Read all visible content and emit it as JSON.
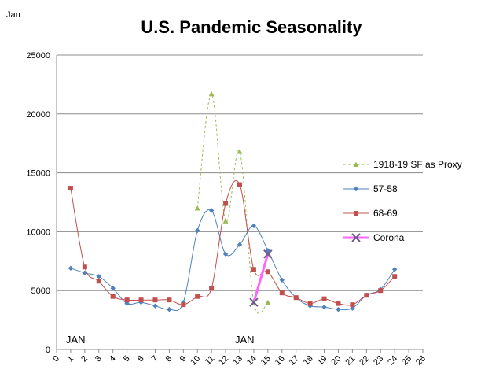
{
  "chart_data": {
    "type": "line",
    "title": "U.S. Pandemic Seasonality",
    "corner_label": "Jan",
    "annotations": [
      {
        "text": "JAN",
        "x": 1
      },
      {
        "text": "JAN",
        "x": 13
      }
    ],
    "xlim": [
      0,
      26
    ],
    "ylim": [
      0,
      25000
    ],
    "x_ticks": [
      0,
      1,
      2,
      3,
      4,
      5,
      6,
      7,
      8,
      9,
      10,
      11,
      12,
      13,
      14,
      15,
      16,
      17,
      18,
      19,
      20,
      21,
      22,
      23,
      24,
      25,
      26
    ],
    "y_ticks": [
      0,
      5000,
      10000,
      15000,
      20000,
      25000
    ],
    "grid": true,
    "legend_position": "right",
    "series": [
      {
        "name": "1918-19 SF as Proxy",
        "color": "#9bbb59",
        "style": "dashed",
        "marker": "triangle",
        "points": [
          [
            10,
            12000
          ],
          [
            11,
            21700
          ],
          [
            12,
            10900
          ],
          [
            13,
            16800
          ],
          [
            14,
            4000
          ],
          [
            15,
            4000
          ]
        ]
      },
      {
        "name": "57-58",
        "color": "#4f81bd",
        "style": "solid",
        "marker": "diamond",
        "points": [
          [
            1,
            6900
          ],
          [
            2,
            6500
          ],
          [
            3,
            6200
          ],
          [
            4,
            5200
          ],
          [
            5,
            3900
          ],
          [
            6,
            4000
          ],
          [
            7,
            3700
          ],
          [
            8,
            3400
          ],
          [
            9,
            4000
          ],
          [
            10,
            10100
          ],
          [
            11,
            11800
          ],
          [
            12,
            8100
          ],
          [
            13,
            8900
          ],
          [
            14,
            10500
          ],
          [
            15,
            8400
          ],
          [
            16,
            5900
          ],
          [
            17,
            4400
          ],
          [
            18,
            3700
          ],
          [
            19,
            3600
          ],
          [
            20,
            3400
          ],
          [
            21,
            3500
          ],
          [
            22,
            4600
          ],
          [
            23,
            5100
          ],
          [
            24,
            6800
          ]
        ]
      },
      {
        "name": "68-69",
        "color": "#c0504d",
        "style": "solid",
        "marker": "square",
        "points": [
          [
            1,
            13700
          ],
          [
            2,
            7000
          ],
          [
            3,
            5800
          ],
          [
            4,
            4500
          ],
          [
            5,
            4200
          ],
          [
            6,
            4200
          ],
          [
            7,
            4200
          ],
          [
            8,
            4200
          ],
          [
            9,
            3800
          ],
          [
            10,
            4500
          ],
          [
            11,
            5200
          ],
          [
            12,
            12400
          ],
          [
            13,
            14000
          ],
          [
            14,
            6800
          ],
          [
            15,
            6600
          ],
          [
            16,
            4800
          ],
          [
            17,
            4400
          ],
          [
            18,
            3900
          ],
          [
            19,
            4300
          ],
          [
            20,
            3900
          ],
          [
            21,
            3800
          ],
          [
            22,
            4600
          ],
          [
            23,
            5000
          ],
          [
            24,
            6200
          ]
        ]
      },
      {
        "name": "Corona",
        "color": "#ff66ff",
        "style": "solid",
        "marker": "x",
        "points": [
          [
            14,
            4000
          ],
          [
            15,
            8100
          ]
        ]
      }
    ]
  }
}
